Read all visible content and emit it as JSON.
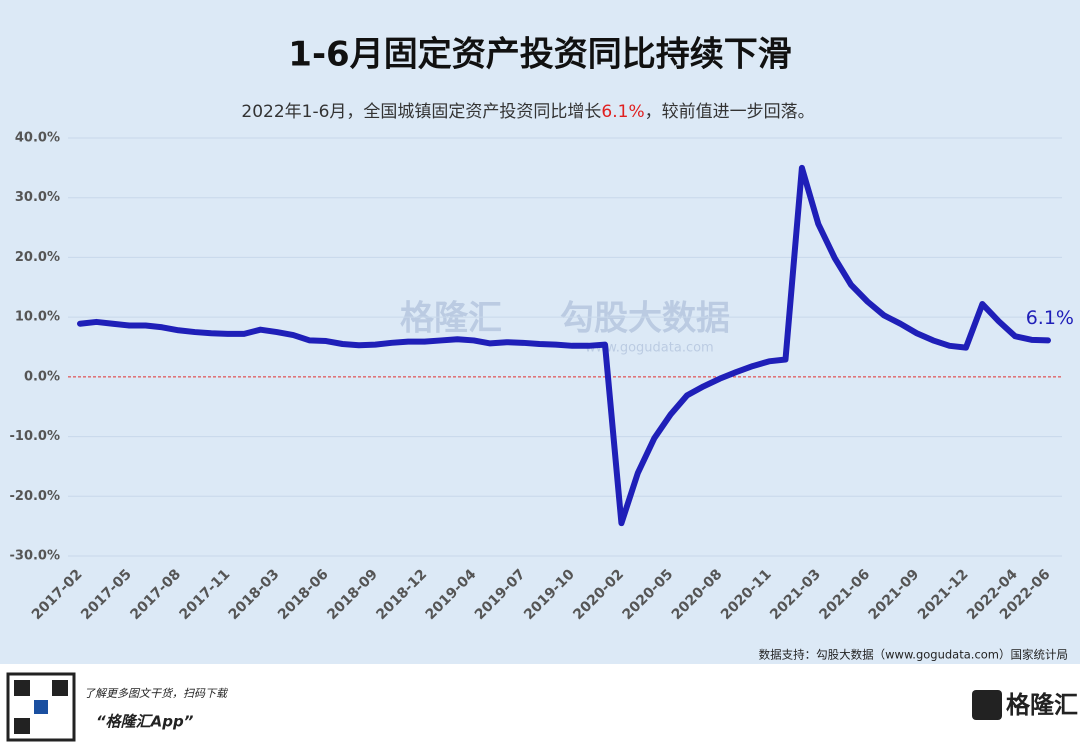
{
  "chart_data": {
    "type": "line",
    "title": "1-6月固定资产投资同比持续下滑",
    "subtitle_parts": [
      "2022年1-6月，全国城镇固定资产投资同比增长",
      "6.1%",
      "，较前值进一步回落。"
    ],
    "categories": [
      "2017-02",
      null,
      null,
      "2017-05",
      null,
      null,
      "2017-08",
      null,
      null,
      "2017-11",
      null,
      null,
      "2018-03",
      null,
      null,
      "2018-06",
      null,
      null,
      "2018-09",
      null,
      null,
      "2018-12",
      null,
      null,
      "2019-04",
      null,
      null,
      "2019-07",
      null,
      null,
      "2019-10",
      null,
      null,
      "2020-02",
      null,
      null,
      "2020-05",
      null,
      null,
      "2020-08",
      null,
      null,
      "2020-11",
      null,
      null,
      "2021-03",
      null,
      null,
      "2021-06",
      null,
      null,
      "2021-09",
      null,
      null,
      "2021-12",
      null,
      null,
      "2022-04",
      null,
      "2022-06"
    ],
    "values": [
      8.9,
      9.2,
      8.9,
      8.6,
      8.6,
      8.3,
      7.8,
      7.5,
      7.3,
      7.2,
      7.2,
      7.9,
      7.5,
      7.0,
      6.1,
      6.0,
      5.5,
      5.3,
      5.4,
      5.7,
      5.9,
      5.9,
      6.1,
      6.3,
      6.1,
      5.6,
      5.8,
      5.7,
      5.5,
      5.4,
      5.2,
      5.2,
      5.4,
      -24.5,
      -16.1,
      -10.3,
      -6.3,
      -3.1,
      -1.6,
      -0.3,
      0.8,
      1.8,
      2.6,
      2.9,
      35.0,
      25.6,
      19.9,
      15.4,
      12.6,
      10.3,
      8.9,
      7.3,
      6.1,
      5.2,
      4.9,
      12.2,
      9.3,
      6.8,
      6.2,
      6.1
    ],
    "end_label": "6.1%",
    "color": "#1f1fb8",
    "ylim": [
      -30,
      40
    ],
    "yticks": [
      {
        "value": -30,
        "label": "-30.0%"
      },
      {
        "value": -20,
        "label": "-20.0%"
      },
      {
        "value": -10,
        "label": "-10.0%"
      },
      {
        "value": 0,
        "label": "0.0%"
      },
      {
        "value": 10,
        "label": "10.0%"
      },
      {
        "value": 20,
        "label": "20.0%"
      },
      {
        "value": 30,
        "label": "30.0%"
      },
      {
        "value": 40,
        "label": "40.0%"
      }
    ],
    "grid": true,
    "zero_line_color": "#e03030",
    "source": "数据支持：勾股大数据（www.gogudata.com）国家统计局",
    "watermark": [
      "格隆汇",
      "勾股大数据",
      "www.gogudata.com"
    ]
  },
  "footer": {
    "promo": "了解更多图文干货，扫码下载",
    "app": "“格隆汇App”",
    "logo": "格隆汇"
  }
}
